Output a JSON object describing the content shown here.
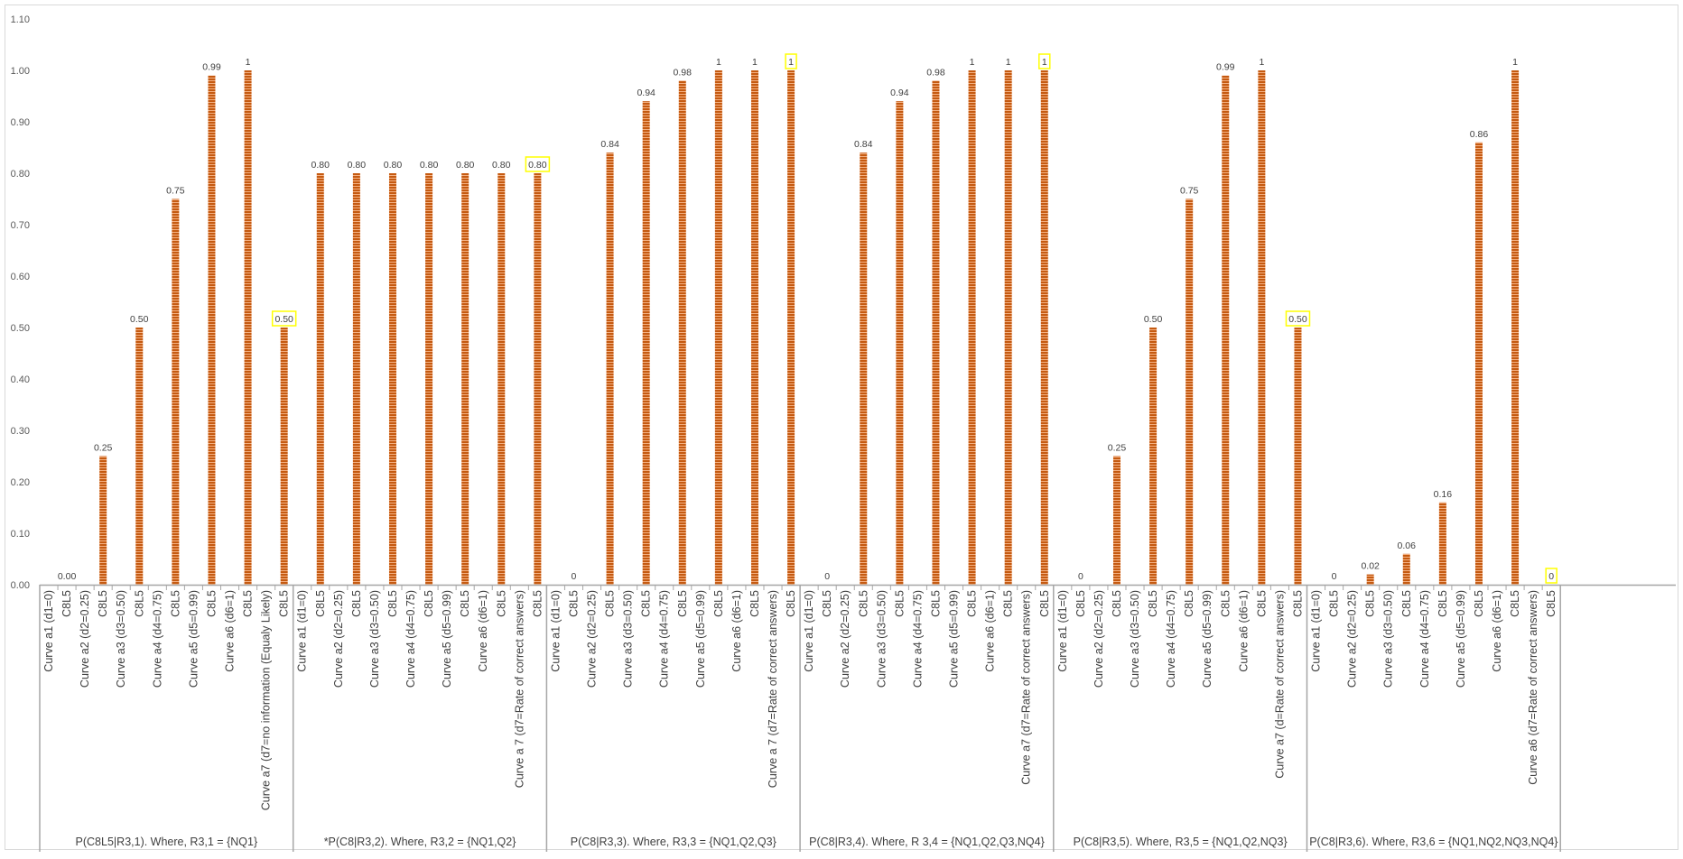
{
  "chart_data": {
    "type": "bar",
    "ylim": [
      0,
      1.1
    ],
    "yticks": [
      "0.00",
      "0.10",
      "0.20",
      "0.30",
      "0.40",
      "0.50",
      "0.60",
      "0.70",
      "0.80",
      "0.90",
      "1.00",
      "1.10"
    ],
    "grid": false,
    "legend": "none",
    "bar_color": "#c55a11",
    "highlight_color": "#ffff00",
    "groups": [
      {
        "label": "P(C8L5|R3,1). Where, R3,1 = {NQ1}",
        "bars": [
          {
            "curve": "Curve a1 (d1=0)",
            "series": "C8L5",
            "value": 0.0,
            "label": "0.00"
          },
          {
            "curve": "Curve a2 (d2=0.25)",
            "series": "C8L5",
            "value": 0.25,
            "label": "0.25"
          },
          {
            "curve": "Curve a3 (d3=0.50)",
            "series": "C8L5",
            "value": 0.5,
            "label": "0.50"
          },
          {
            "curve": "Curve a4 (d4=0.75)",
            "series": "C8L5",
            "value": 0.75,
            "label": "0.75"
          },
          {
            "curve": "Curve a5 (d5=0.99)",
            "series": "C8L5",
            "value": 0.99,
            "label": "0.99"
          },
          {
            "curve": "Curve a6 (d6=1)",
            "series": "C8L5",
            "value": 1.0,
            "label": "1"
          },
          {
            "curve": "Curve a7 (d7=no information (Equaly Likely)",
            "series": "C8L5",
            "value": 0.5,
            "label": "0.50",
            "highlight": true
          }
        ]
      },
      {
        "label": "*P(C8|R3,2). Where, R3,2 = {NQ1,Q2}",
        "bars": [
          {
            "curve": "Curve a1 (d1=0)",
            "series": "C8L5",
            "value": 0.8,
            "label": "0.80"
          },
          {
            "curve": "Curve a2 (d2=0.25)",
            "series": "C8L5",
            "value": 0.8,
            "label": "0.80"
          },
          {
            "curve": "Curve a3 (d3=0.50)",
            "series": "C8L5",
            "value": 0.8,
            "label": "0.80"
          },
          {
            "curve": "Curve a4 (d4=0.75)",
            "series": "C8L5",
            "value": 0.8,
            "label": "0.80"
          },
          {
            "curve": "Curve a5 (d5=0.99)",
            "series": "C8L5",
            "value": 0.8,
            "label": "0.80"
          },
          {
            "curve": "Curve a6 (d6=1)",
            "series": "C8L5",
            "value": 0.8,
            "label": "0.80"
          },
          {
            "curve": "Curve a 7 (d7=Rate of correct answers)",
            "series": "C8L5",
            "value": 0.8,
            "label": "0.80",
            "highlight": true
          }
        ]
      },
      {
        "label": "P(C8|R3,3). Where, R3,3 = {NQ1,Q2,Q3}",
        "bars": [
          {
            "curve": "Curve a1 (d1=0)",
            "series": "C8L5",
            "value": 0,
            "label": "0"
          },
          {
            "curve": "Curve a2 (d2=0.25)",
            "series": "C8L5",
            "value": 0.84,
            "label": "0.84"
          },
          {
            "curve": "Curve a3 (d3=0.50)",
            "series": "C8L5",
            "value": 0.94,
            "label": "0.94"
          },
          {
            "curve": "Curve a4 (d4=0.75)",
            "series": "C8L5",
            "value": 0.98,
            "label": "0.98"
          },
          {
            "curve": "Curve a5 (d5=0.99)",
            "series": "C8L5",
            "value": 1,
            "label": "1"
          },
          {
            "curve": "Curve a6 (d6=1)",
            "series": "C8L5",
            "value": 1,
            "label": "1"
          },
          {
            "curve": "Curve a 7 (d7=Rate of correct answers)",
            "series": "C8L5",
            "value": 1,
            "label": "1",
            "highlight": true
          }
        ]
      },
      {
        "label": "P(C8|R3,4). Where, R 3,4 = {NQ1,Q2,Q3,NQ4}",
        "bars": [
          {
            "curve": "Curve a1 (d1=0)",
            "series": "C8L5",
            "value": 0,
            "label": "0"
          },
          {
            "curve": "Curve a2 (d2=0.25)",
            "series": "C8L5",
            "value": 0.84,
            "label": "0.84"
          },
          {
            "curve": "Curve a3 (d3=0.50)",
            "series": "C8L5",
            "value": 0.94,
            "label": "0.94"
          },
          {
            "curve": "Curve a4 (d4=0.75)",
            "series": "C8L5",
            "value": 0.98,
            "label": "0.98"
          },
          {
            "curve": "Curve a5 (d5=0.99)",
            "series": "C8L5",
            "value": 1,
            "label": "1"
          },
          {
            "curve": "Curve a6 (d6=1)",
            "series": "C8L5",
            "value": 1,
            "label": "1"
          },
          {
            "curve": "Curve a7 (d7=Rate of correct answers)",
            "series": "C8L5",
            "value": 1,
            "label": "1",
            "highlight": true
          }
        ]
      },
      {
        "label": "P(C8|R3,5). Where, R3,5 = {NQ1,Q2,NQ3}",
        "bars": [
          {
            "curve": "Curve a1 (d1=0)",
            "series": "C8L5",
            "value": 0,
            "label": "0"
          },
          {
            "curve": "Curve a2 (d2=0.25)",
            "series": "C8L5",
            "value": 0.25,
            "label": "0.25"
          },
          {
            "curve": "Curve a3 (d3=0.50)",
            "series": "C8L5",
            "value": 0.5,
            "label": "0.50"
          },
          {
            "curve": "Curve a4 (d4=0.75)",
            "series": "C8L5",
            "value": 0.75,
            "label": "0.75"
          },
          {
            "curve": "Curve a5 (d5=0.99)",
            "series": "C8L5",
            "value": 0.99,
            "label": "0.99"
          },
          {
            "curve": "Curve a6 (d6=1)",
            "series": "C8L5",
            "value": 1,
            "label": "1"
          },
          {
            "curve": "Curve  a7 (d=Rate of correct answers)",
            "series": "C8L5",
            "value": 0.5,
            "label": "0.50",
            "highlight": true
          }
        ]
      },
      {
        "label": "P(C8|R3,6). Where, R3,6 = {NQ1,NQ2,NQ3,NQ4}",
        "bars": [
          {
            "curve": "Curve a1 (d1=0)",
            "series": "C8L5",
            "value": 0,
            "label": "0"
          },
          {
            "curve": "Curve a2 (d2=0.25)",
            "series": "C8L5",
            "value": 0.02,
            "label": "0.02"
          },
          {
            "curve": "Curve a3 (d3=0.50)",
            "series": "C8L5",
            "value": 0.06,
            "label": "0.06"
          },
          {
            "curve": "Curve a4 (d4=0.75)",
            "series": "C8L5",
            "value": 0.16,
            "label": "0.16"
          },
          {
            "curve": "Curve a5 (d5=0.99)",
            "series": "C8L5",
            "value": 0.86,
            "label": "0.86"
          },
          {
            "curve": "Curve a6 (d6=1)",
            "series": "C8L5",
            "value": 1,
            "label": "1"
          },
          {
            "curve": "Curve a6 (d7=Rate of correct answers)",
            "series": "C8L5",
            "value": 0,
            "label": "0",
            "highlight": true
          }
        ]
      }
    ]
  }
}
